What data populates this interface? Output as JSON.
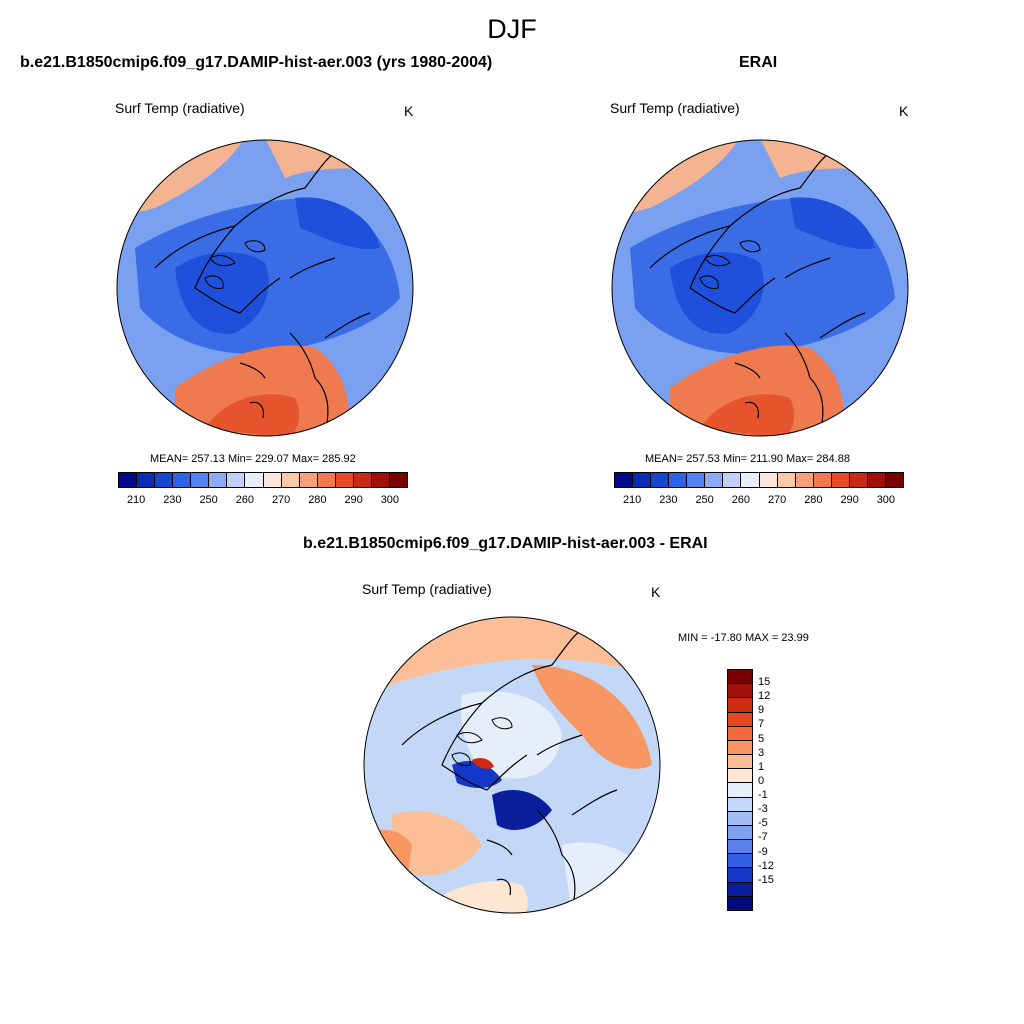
{
  "title": "DJF",
  "panels": [
    {
      "title": "b.e21.B1850cmip6.f09_g17.DAMIP-hist-aer.003 (yrs 1980-2004)",
      "variable": "Surf Temp (radiative)",
      "unit": "K",
      "stats": "MEAN= 257.13  Min= 229.07  Max= 285.92"
    },
    {
      "title": "ERAI",
      "variable": "Surf Temp (radiative)",
      "unit": "K",
      "stats": "MEAN= 257.53  Min= 211.90  Max= 284.88"
    },
    {
      "title": "b.e21.B1850cmip6.f09_g17.DAMIP-hist-aer.003 - ERAI",
      "variable": "Surf Temp (radiative)",
      "unit": "K",
      "stats": "MIN = -17.80 MAX =  23.99"
    }
  ],
  "abs_colorbar": {
    "colors": [
      "#000a8c",
      "#0a2db4",
      "#1446d2",
      "#2d64e6",
      "#5582f0",
      "#8caaf5",
      "#bed2fa",
      "#e8f0fc",
      "#fde6d8",
      "#fbc8aa",
      "#f7a07a",
      "#f27850",
      "#e64a28",
      "#c82814",
      "#a00f0a",
      "#780000"
    ],
    "labels": [
      "210",
      "230",
      "250",
      "260",
      "270",
      "280",
      "290",
      "300"
    ]
  },
  "diff_colorbar": {
    "colors": [
      "#780000",
      "#a50f0a",
      "#cd2a10",
      "#e8461e",
      "#f56a3c",
      "#f89664",
      "#fbbe96",
      "#fde6d2",
      "#e6eef9",
      "#c3d7f6",
      "#a0bef3",
      "#7da2f0",
      "#5a82eb",
      "#3260e6",
      "#1437c8",
      "#0a1e9b",
      "#000a78"
    ],
    "labels": [
      "15",
      "12",
      "9",
      "7",
      "5",
      "3",
      "1",
      "0",
      "-1",
      "-3",
      "-5",
      "-7",
      "-9",
      "-12",
      "-15"
    ]
  },
  "map_colors": {
    "deep_blue": "#1e50dc",
    "mid_blue": "#3a6ce6",
    "light_blue": "#7aa0f0",
    "pale_blue": "#b4cdf8",
    "peach": "#f5b491",
    "orange": "#f07a50",
    "red_orange": "#e6552d"
  }
}
